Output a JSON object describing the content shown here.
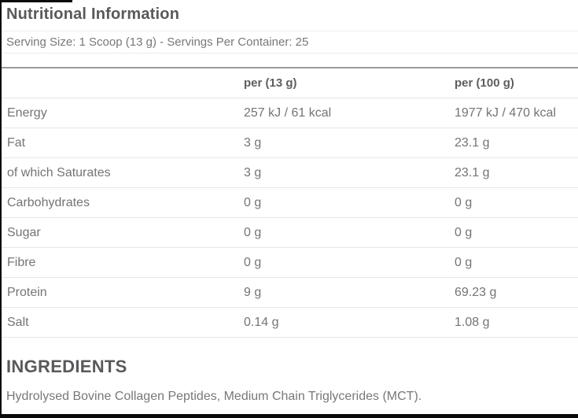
{
  "header": {
    "title": "Nutritional Information",
    "serving_info": "Serving Size: 1 Scoop (13 g) - Servings Per Container: 25"
  },
  "nutrition_table": {
    "columns": [
      "",
      "per (13 g)",
      "per (100 g)"
    ],
    "rows": [
      {
        "label": "Energy",
        "per_13g": "257 kJ / 61 kcal",
        "per_100g": "1977 kJ / 470 kcal"
      },
      {
        "label": "Fat",
        "per_13g": "3 g",
        "per_100g": "23.1 g"
      },
      {
        "label": "of which Saturates",
        "per_13g": "3 g",
        "per_100g": "23.1 g"
      },
      {
        "label": "Carbohydrates",
        "per_13g": "0 g",
        "per_100g": "0 g"
      },
      {
        "label": "Sugar",
        "per_13g": "0 g",
        "per_100g": "0 g"
      },
      {
        "label": "Fibre",
        "per_13g": "0 g",
        "per_100g": "0 g"
      },
      {
        "label": "Protein",
        "per_13g": "9 g",
        "per_100g": "69.23 g"
      },
      {
        "label": "Salt",
        "per_13g": "0.14 g",
        "per_100g": "1.08 g"
      }
    ]
  },
  "ingredients": {
    "heading": "INGREDIENTS",
    "text": "Hydrolysed Bovine Collagen Peptides, Medium Chain Triglycerides (MCT)."
  },
  "colors": {
    "heading_text": "#58595b",
    "body_text": "#737477",
    "row_divider": "#e6e6e6",
    "table_top_border": "#9b9b9b",
    "crop_border": "#0a0a0a"
  }
}
